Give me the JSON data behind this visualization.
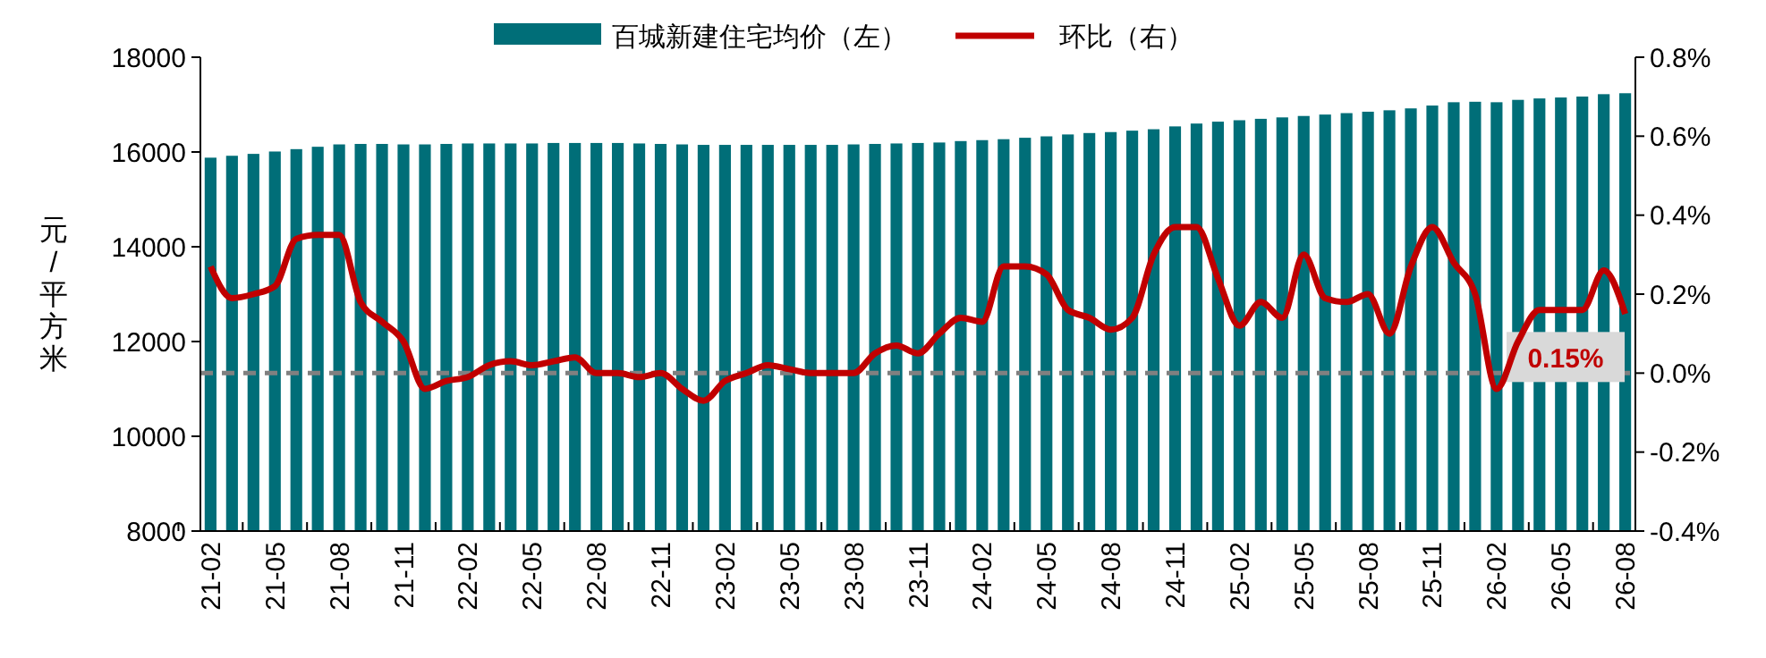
{
  "chart_data": {
    "type": "bar",
    "ylabel": "元/平方米",
    "categories": [
      "21-02",
      null,
      null,
      "21-05",
      null,
      null,
      "21-08",
      null,
      null,
      "21-11",
      null,
      null,
      "22-02",
      null,
      null,
      "22-05",
      null,
      null,
      "22-08",
      null,
      null,
      "22-11",
      null,
      null,
      "23-02",
      null,
      null,
      "23-05",
      null,
      null,
      "23-08",
      null,
      null,
      "23-11",
      null,
      null,
      "24-02",
      null,
      null,
      "24-05",
      null,
      null,
      "24-08",
      null,
      null,
      "24-11",
      null,
      null,
      "25-02",
      null,
      null,
      "25-05",
      null,
      null,
      "25-08",
      null,
      null,
      "25-11",
      null,
      null,
      "26-02",
      null,
      null,
      "26-05",
      null,
      null,
      "26-08"
    ],
    "series": [
      {
        "name": "百城新建住宅均价（左）",
        "color": "#006e78",
        "values": [
          15880,
          15920,
          15960,
          16010,
          16060,
          16110,
          16160,
          16170,
          16170,
          16160,
          16160,
          16170,
          16180,
          16180,
          16180,
          16180,
          16190,
          16190,
          16190,
          16190,
          16180,
          16170,
          16160,
          16150,
          16150,
          16150,
          16150,
          16150,
          16150,
          16150,
          16160,
          16170,
          16180,
          16190,
          16200,
          16230,
          16250,
          16270,
          16300,
          16330,
          16370,
          16400,
          16420,
          16450,
          16480,
          16540,
          16600,
          16640,
          16670,
          16700,
          16730,
          16760,
          16790,
          16820,
          16850,
          16880,
          16920,
          16980,
          17050,
          17060,
          17050,
          17100,
          17130,
          17150,
          17170,
          17220,
          17240
        ]
      },
      {
        "name": "环比（右）",
        "type": "line",
        "axis": "y2",
        "color": "#c00000",
        "values": [
          0.27,
          0.19,
          0.2,
          0.22,
          0.34,
          0.35,
          0.35,
          0.18,
          0.13,
          0.08,
          -0.04,
          -0.02,
          -0.01,
          0.02,
          0.03,
          0.02,
          0.03,
          0.04,
          0,
          0,
          -0.01,
          0,
          -0.04,
          -0.07,
          -0.02,
          0,
          0.02,
          0.01,
          0,
          0,
          0,
          0.05,
          0.07,
          0.05,
          0.1,
          0.14,
          0.13,
          0.27,
          0.27,
          0.25,
          0.16,
          0.14,
          0.11,
          0.14,
          0.3,
          0.37,
          0.37,
          0.24,
          0.12,
          0.18,
          0.14,
          0.3,
          0.19,
          0.18,
          0.2,
          0.1,
          0.27,
          0.37,
          0.28,
          0.2,
          -0.04,
          0.08,
          0.16,
          0.16,
          0.16,
          0.26,
          0.15
        ]
      }
    ],
    "ylim": [
      8000,
      18000
    ],
    "yticks": [
      8000,
      10000,
      12000,
      14000,
      16000,
      18000
    ],
    "y2lim": [
      -0.4,
      0.8
    ],
    "y2ticks": [
      {
        "value": -0.4,
        "label": "-0.4%"
      },
      {
        "value": -0.2,
        "label": "-0.2%"
      },
      {
        "value": 0,
        "label": "0.0%"
      },
      {
        "value": 0.2,
        "label": "0.2%"
      },
      {
        "value": 0.4,
        "label": "0.4%"
      },
      {
        "value": 0.6,
        "label": "0.6%"
      },
      {
        "value": 0.8,
        "label": "0.8%"
      }
    ],
    "ref_lines": [
      {
        "axis": "y2",
        "value": 0,
        "color": "#808080",
        "line_style": "dashed"
      }
    ],
    "annotations": [
      "0.15%"
    ],
    "legend": "top",
    "grid": false,
    "marker": "none"
  }
}
